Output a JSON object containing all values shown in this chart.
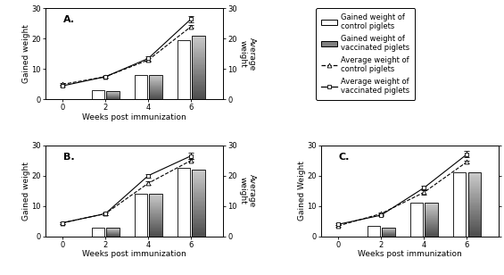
{
  "panels": [
    "A",
    "B",
    "C"
  ],
  "weeks": [
    0,
    2,
    4,
    6
  ],
  "bar_weeks": [
    2,
    4,
    6
  ],
  "A": {
    "control_bars": [
      3.0,
      8.0,
      19.5
    ],
    "vacc_bars": [
      2.8,
      8.0,
      21.0
    ],
    "control_line": [
      5.0,
      7.5,
      13.0,
      24.0
    ],
    "vacc_line": [
      4.5,
      7.5,
      13.5,
      26.5
    ],
    "control_line_err": [
      0.3,
      0.4,
      0.6,
      0.5
    ],
    "vacc_line_err": [
      0.3,
      0.4,
      0.6,
      1.0
    ]
  },
  "B": {
    "control_bars": [
      3.0,
      14.0,
      22.5
    ],
    "vacc_bars": [
      2.8,
      14.0,
      22.0
    ],
    "control_line": [
      4.5,
      7.5,
      17.5,
      25.0
    ],
    "vacc_line": [
      4.5,
      7.5,
      20.0,
      26.5
    ],
    "control_line_err": [
      0.3,
      0.4,
      0.6,
      0.5
    ],
    "vacc_line_err": [
      0.3,
      0.4,
      0.6,
      1.0
    ]
  },
  "C": {
    "control_bars": [
      3.5,
      11.0,
      21.0
    ],
    "vacc_bars": [
      3.0,
      11.0,
      21.0
    ],
    "control_line": [
      3.5,
      7.5,
      14.5,
      24.5
    ],
    "vacc_line": [
      4.0,
      7.0,
      16.0,
      27.0
    ],
    "control_line_err": [
      0.3,
      0.4,
      0.6,
      0.5
    ],
    "vacc_line_err": [
      0.3,
      0.4,
      0.6,
      1.0
    ]
  },
  "ylim": [
    0,
    30
  ],
  "yticks": [
    0,
    10,
    20,
    30
  ],
  "xlabel": "Weeks post immunization",
  "ylabel_left_A": "Gained weight",
  "ylabel_left_B": "Gained weight",
  "ylabel_left_C": "Gained Weight",
  "ylabel_right": "Average\nweight",
  "bar_width": 0.6,
  "legend_labels": [
    "Gained weight of\ncontrol piglets",
    "Gained weight of\nvaccinated piglets",
    "Average weight of\ncontrol piglets",
    "Average weight of\nvaccinated piglets"
  ]
}
